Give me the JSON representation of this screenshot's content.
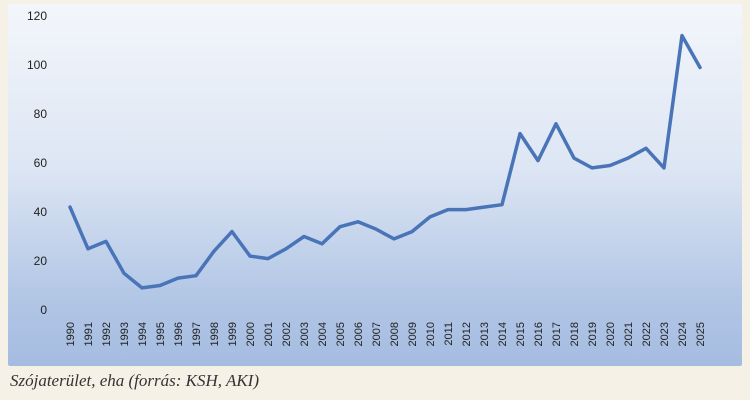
{
  "chart_data": {
    "type": "line",
    "title": "",
    "xlabel": "",
    "ylabel": "",
    "ylim": [
      0,
      120
    ],
    "yticks": [
      "0",
      "20",
      "40",
      "60",
      "80",
      "100",
      "120"
    ],
    "grid": false,
    "legend": "none",
    "line_color": "#4a74b8",
    "x": [
      "1990",
      "1991",
      "1992",
      "1993",
      "1994",
      "1995",
      "1996",
      "1997",
      "1998",
      "1999",
      "2000",
      "2001",
      "2002",
      "2003",
      "2004",
      "2005",
      "2006",
      "2007",
      "2008",
      "2009",
      "2010",
      "2011",
      "2012",
      "2013",
      "2014",
      "2015",
      "2016",
      "2017",
      "2018",
      "2019",
      "2020",
      "2021",
      "2022",
      "2023",
      "2024",
      "2025"
    ],
    "series": [
      {
        "values": [
          42,
          25,
          28,
          15,
          9,
          10,
          13,
          14,
          24,
          32,
          22,
          21,
          25,
          30,
          27,
          34,
          36,
          33,
          29,
          32,
          38,
          41,
          41,
          42,
          43,
          72,
          61,
          76,
          62,
          58,
          59,
          62,
          66,
          58,
          112,
          99
        ]
      }
    ]
  },
  "caption": "Szójaterület, eha (forrás: KSH, AKI)"
}
